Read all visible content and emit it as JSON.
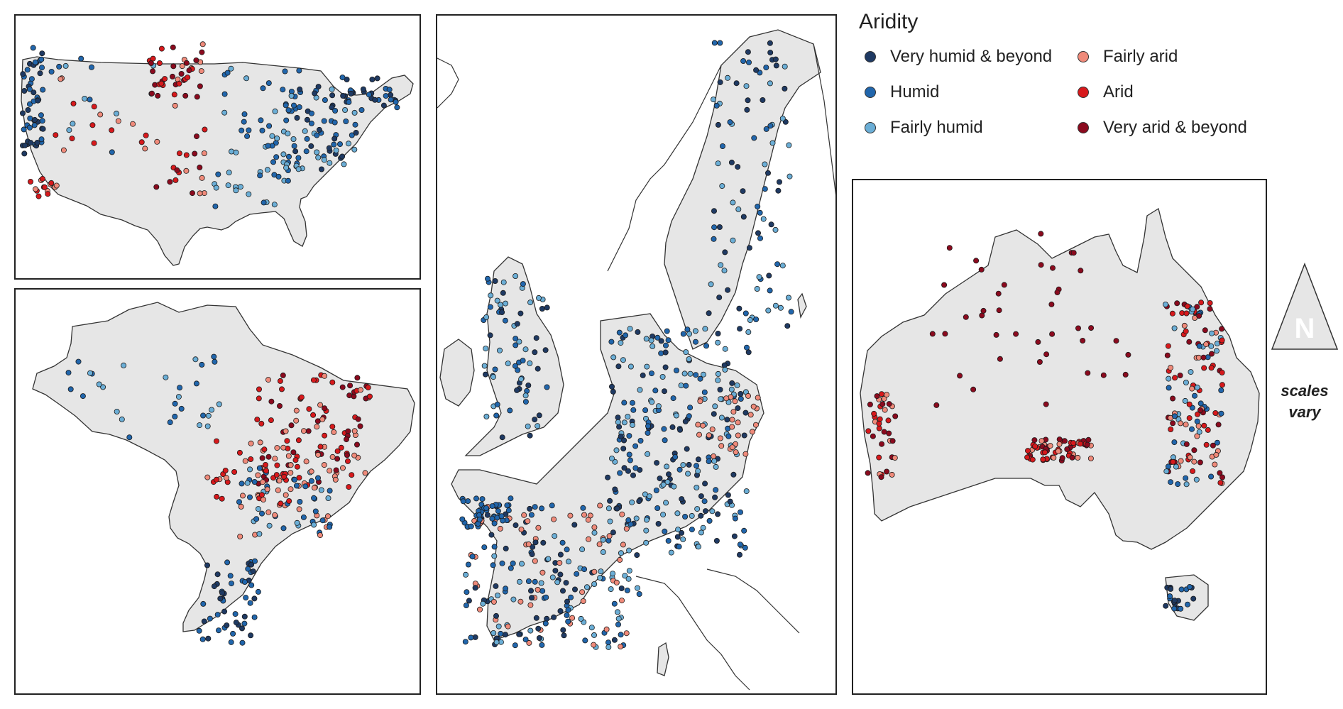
{
  "legend": {
    "title": "Aridity",
    "items": [
      {
        "label": "Very humid & beyond",
        "color": "#1f3a63"
      },
      {
        "label": "Humid",
        "color": "#2166ac"
      },
      {
        "label": "Fairly humid",
        "color": "#6baed6"
      },
      {
        "label": "Fairly arid",
        "color": "#ef8a7a"
      },
      {
        "label": "Arid",
        "color": "#d7191c"
      },
      {
        "label": "Very arid & beyond",
        "color": "#8b0a1e"
      }
    ]
  },
  "north_arrow": {
    "letter": "N"
  },
  "scale_note": {
    "line1": "scales",
    "line2": "vary"
  },
  "maps": [
    {
      "region": "United States"
    },
    {
      "region": "Brazil"
    },
    {
      "region": "Europe"
    },
    {
      "region": "Australia"
    }
  ]
}
